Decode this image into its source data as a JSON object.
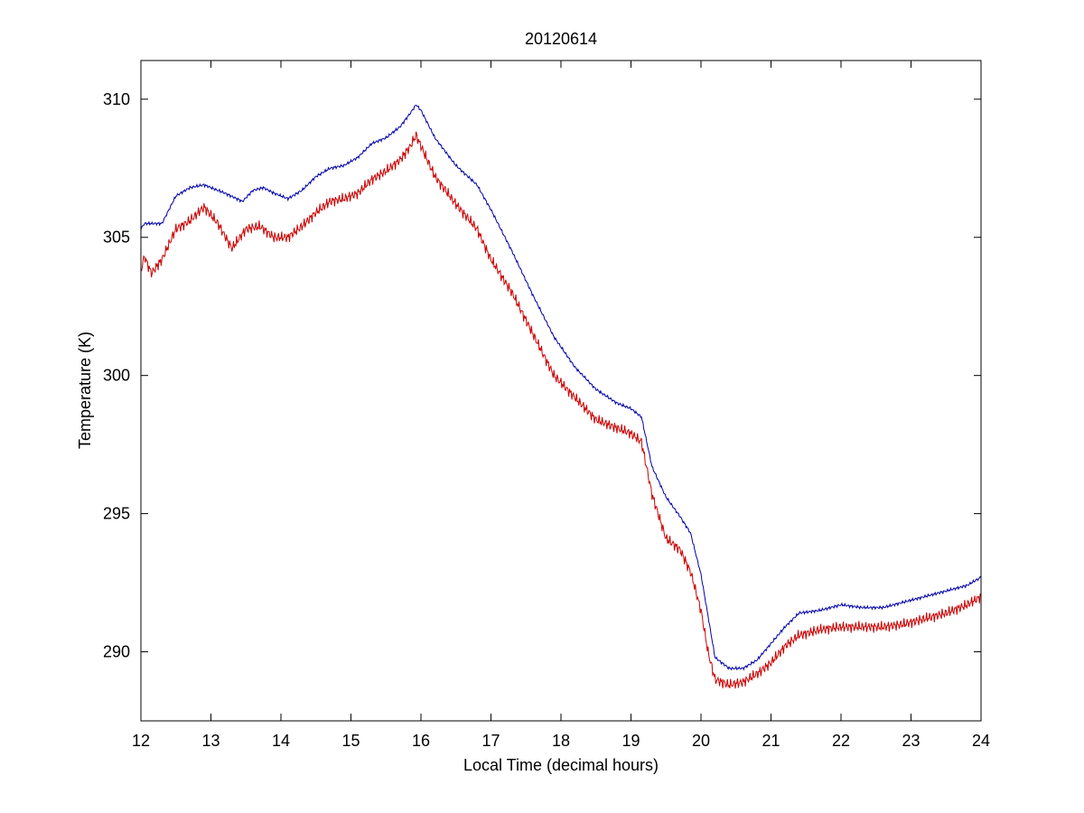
{
  "chart_data": {
    "type": "line",
    "title": "20120614",
    "xlabel": "Local Time (decimal hours)",
    "ylabel": "Temperature (K)",
    "xlim": [
      12,
      24
    ],
    "ylim": [
      287.5,
      311.4
    ],
    "xticks": [
      12,
      13,
      14,
      15,
      16,
      17,
      18,
      19,
      20,
      21,
      22,
      23,
      24
    ],
    "yticks": [
      290,
      295,
      300,
      305,
      310
    ],
    "grid": false,
    "legend": "none",
    "series": [
      {
        "color": "#0000aa",
        "x": [
          12.0,
          12.05,
          12.3,
          12.5,
          12.7,
          12.9,
          13.0,
          13.2,
          13.45,
          13.6,
          13.75,
          13.9,
          14.1,
          14.3,
          14.5,
          14.7,
          14.9,
          15.1,
          15.3,
          15.5,
          15.7,
          15.85,
          15.93,
          16.0,
          16.2,
          16.5,
          16.8,
          17.0,
          17.3,
          17.6,
          17.9,
          18.2,
          18.5,
          18.8,
          19.0,
          19.15,
          19.3,
          19.5,
          19.7,
          19.85,
          20.0,
          20.1,
          20.2,
          20.4,
          20.6,
          20.8,
          21.0,
          21.2,
          21.4,
          21.7,
          22.0,
          22.3,
          22.6,
          22.9,
          23.2,
          23.5,
          23.8,
          24.0
        ],
        "y": [
          305.3,
          305.5,
          305.5,
          306.5,
          306.8,
          306.9,
          306.8,
          306.6,
          306.3,
          306.7,
          306.8,
          306.6,
          306.4,
          306.7,
          307.2,
          307.5,
          307.6,
          307.9,
          308.4,
          308.6,
          309.0,
          309.5,
          309.8,
          309.6,
          308.6,
          307.6,
          306.9,
          306.0,
          304.5,
          302.9,
          301.4,
          300.3,
          299.5,
          299.0,
          298.8,
          298.5,
          296.7,
          295.6,
          294.9,
          294.3,
          292.8,
          291.3,
          289.8,
          289.4,
          289.4,
          289.7,
          290.3,
          290.9,
          291.4,
          291.5,
          291.7,
          291.6,
          291.6,
          291.8,
          292.0,
          292.2,
          292.4,
          292.7
        ]
      },
      {
        "color": "#cc0000",
        "x": [
          12.0,
          12.05,
          12.15,
          12.3,
          12.5,
          12.7,
          12.9,
          13.1,
          13.3,
          13.5,
          13.7,
          13.9,
          14.1,
          14.3,
          14.5,
          14.7,
          14.9,
          15.1,
          15.3,
          15.5,
          15.7,
          15.85,
          15.93,
          16.0,
          16.2,
          16.5,
          16.8,
          17.0,
          17.3,
          17.6,
          17.9,
          18.2,
          18.5,
          18.8,
          19.0,
          19.15,
          19.3,
          19.5,
          19.7,
          19.85,
          20.0,
          20.1,
          20.2,
          20.4,
          20.6,
          20.8,
          21.0,
          21.2,
          21.4,
          21.7,
          22.0,
          22.3,
          22.6,
          22.9,
          23.2,
          23.5,
          23.8,
          24.0
        ],
        "y": [
          303.8,
          304.3,
          303.7,
          304.2,
          305.3,
          305.6,
          306.1,
          305.5,
          304.6,
          305.3,
          305.4,
          305.0,
          305.0,
          305.4,
          305.9,
          306.3,
          306.4,
          306.6,
          307.1,
          307.4,
          307.8,
          308.3,
          308.7,
          308.3,
          307.2,
          306.2,
          305.3,
          304.2,
          303.0,
          301.5,
          300.0,
          299.2,
          298.4,
          298.1,
          297.9,
          297.6,
          295.7,
          294.1,
          293.7,
          292.9,
          291.5,
          290.0,
          289.0,
          288.8,
          288.9,
          289.2,
          289.6,
          290.2,
          290.6,
          290.8,
          290.9,
          290.9,
          290.9,
          291.0,
          291.2,
          291.4,
          291.7,
          292.0
        ]
      }
    ]
  }
}
